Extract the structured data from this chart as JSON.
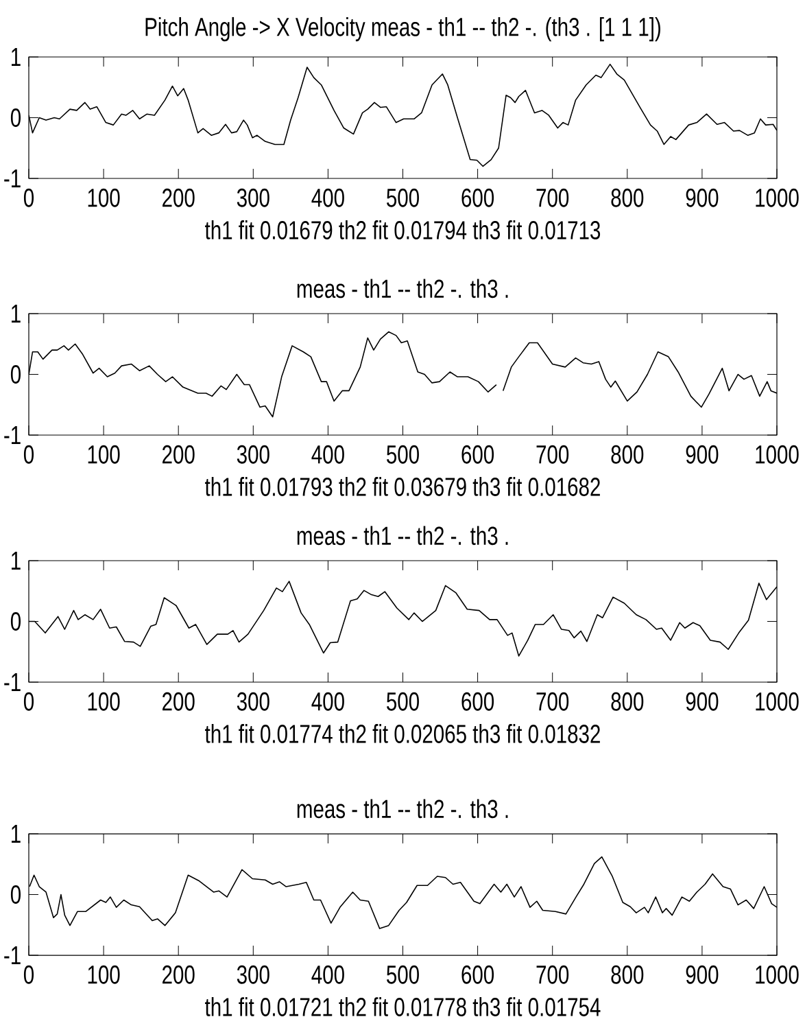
{
  "chart_data": [
    {
      "type": "line",
      "title": "Pitch Angle -> X Velocity meas -  th1 --  th2 -.  (th3 . [1 1 1])",
      "xlabel": "th1 fit 0.01679  th2 fit 0.01794 th3 fit 0.01713",
      "xlim": [
        0,
        1000
      ],
      "ylim": [
        -1,
        1
      ],
      "xticks": [
        0,
        100,
        200,
        300,
        400,
        500,
        600,
        700,
        800,
        900,
        1000
      ],
      "yticks": [
        -1,
        0,
        1
      ],
      "x": [
        0,
        5,
        14,
        23,
        34,
        41,
        55,
        64,
        75,
        82,
        91,
        103,
        113,
        124,
        130,
        139,
        148,
        158,
        168,
        182,
        192,
        199,
        207,
        213,
        226,
        233,
        244,
        254,
        263,
        271,
        278,
        287,
        292,
        299,
        305,
        316,
        329,
        341,
        350,
        360,
        372,
        381,
        391,
        408,
        421,
        434,
        446,
        453,
        462,
        470,
        478,
        491,
        501,
        515,
        525,
        539,
        553,
        560,
        573,
        590,
        599,
        607,
        618,
        628,
        638,
        644,
        650,
        655,
        664,
        676,
        686,
        695,
        707,
        714,
        721,
        731,
        745,
        758,
        765,
        777,
        786,
        796,
        817,
        831,
        840,
        849,
        858,
        865,
        882,
        893,
        906,
        920,
        930,
        942,
        950,
        961,
        970,
        978,
        985,
        995,
        1000
      ],
      "series": [
        {
          "color": "#000000",
          "values": [
            0.04,
            -0.25,
            0,
            -0.04,
            0,
            -0.02,
            0.14,
            0.12,
            0.25,
            0.14,
            0.18,
            -0.08,
            -0.12,
            0.06,
            0.04,
            0.12,
            -0.02,
            0.06,
            0.04,
            0.29,
            0.52,
            0.36,
            0.48,
            0.29,
            -0.25,
            -0.18,
            -0.29,
            -0.25,
            -0.11,
            -0.25,
            -0.23,
            -0.04,
            -0.12,
            -0.33,
            -0.29,
            -0.39,
            -0.44,
            -0.44,
            -0.04,
            0.33,
            0.83,
            0.66,
            0.54,
            0.12,
            -0.17,
            -0.27,
            0.08,
            0.14,
            0.25,
            0.17,
            0.18,
            -0.08,
            -0.02,
            -0.02,
            0.08,
            0.54,
            0.72,
            0.54,
            0,
            -0.69,
            -0.7,
            -0.8,
            -0.69,
            -0.5,
            0.37,
            0.33,
            0.25,
            0.35,
            0.45,
            0.08,
            0.12,
            0.04,
            -0.17,
            -0.08,
            -0.12,
            0.29,
            0.54,
            0.7,
            0.66,
            0.88,
            0.72,
            0.62,
            0.17,
            -0.12,
            -0.22,
            -0.44,
            -0.31,
            -0.36,
            -0.12,
            -0.08,
            0.06,
            -0.11,
            -0.08,
            -0.22,
            -0.21,
            -0.29,
            -0.25,
            -0.02,
            -0.12,
            -0.11,
            -0.21
          ]
        }
      ]
    },
    {
      "type": "line",
      "title": "meas -  th1 -- th2 -.  th3 .",
      "xlabel": "th1 fit 0.01793  th2 fit 0.03679 th3 fit 0.01682",
      "xlim": [
        0,
        1000
      ],
      "ylim": [
        -1,
        1
      ],
      "xticks": [
        0,
        100,
        200,
        300,
        400,
        500,
        600,
        700,
        800,
        900,
        1000
      ],
      "yticks": [
        -1,
        0,
        1
      ],
      "x": [
        0,
        5,
        12,
        19,
        31,
        38,
        47,
        53,
        62,
        72,
        86,
        94,
        105,
        115,
        124,
        137,
        148,
        161,
        172,
        183,
        192,
        206,
        226,
        237,
        245,
        257,
        264,
        278,
        288,
        295,
        309,
        316,
        326,
        338,
        352,
        367,
        377,
        391,
        398,
        408,
        419,
        428,
        443,
        453,
        461,
        470,
        481,
        491,
        498,
        506,
        520,
        529,
        539,
        549,
        563,
        573,
        587,
        601,
        614,
        625,
        630,
        634,
        645,
        655,
        669,
        680,
        700,
        717,
        731,
        741,
        752,
        762,
        771,
        778,
        784,
        800,
        813,
        827,
        841,
        855,
        868,
        885,
        899,
        909,
        927,
        936,
        948,
        956,
        966,
        977,
        987,
        992,
        1000
      ],
      "series": [
        {
          "color": "#000000",
          "values": [
            0,
            0.37,
            0.37,
            0.25,
            0.4,
            0.4,
            0.47,
            0.4,
            0.5,
            0.33,
            0.02,
            0.1,
            -0.04,
            0.02,
            0.14,
            0.17,
            0.06,
            0.14,
            0,
            -0.12,
            -0.04,
            -0.21,
            -0.31,
            -0.31,
            -0.36,
            -0.19,
            -0.25,
            0,
            -0.17,
            -0.17,
            -0.54,
            -0.52,
            -0.7,
            -0.04,
            0.47,
            0.37,
            0.29,
            -0.12,
            -0.12,
            -0.44,
            -0.27,
            -0.27,
            0.12,
            0.6,
            0.4,
            0.58,
            0.7,
            0.64,
            0.52,
            0.55,
            0.04,
            0,
            -0.14,
            -0.12,
            0.04,
            -0.04,
            -0.04,
            -0.12,
            -0.29,
            -0.17,
            null,
            -0.27,
            0.12,
            0.29,
            0.52,
            0.52,
            0.17,
            0.12,
            0.27,
            0.19,
            0.17,
            0.21,
            -0.08,
            -0.21,
            -0.11,
            -0.44,
            -0.29,
            0,
            0.37,
            0.29,
            0.04,
            -0.36,
            -0.54,
            -0.33,
            0.1,
            -0.27,
            0,
            -0.08,
            -0.02,
            -0.36,
            -0.12,
            -0.27,
            -0.31
          ]
        }
      ]
    },
    {
      "type": "line",
      "title": "meas -  th1 -- th2 -.  th3 .",
      "xlabel": "th1 fit 0.01774  th2 fit 0.02065 th3 fit 0.01832",
      "xlim": [
        0,
        1000
      ],
      "ylim": [
        -1,
        1
      ],
      "xticks": [
        0,
        100,
        200,
        300,
        400,
        500,
        600,
        700,
        800,
        900,
        1000
      ],
      "yticks": [
        -1,
        0,
        1
      ],
      "x": [
        0,
        8,
        22,
        39,
        48,
        60,
        66,
        75,
        86,
        96,
        108,
        117,
        128,
        140,
        149,
        163,
        170,
        181,
        197,
        214,
        223,
        238,
        252,
        266,
        273,
        281,
        293,
        314,
        331,
        339,
        348,
        364,
        375,
        394,
        403,
        413,
        430,
        439,
        448,
        458,
        467,
        476,
        492,
        508,
        515,
        526,
        544,
        557,
        571,
        586,
        602,
        616,
        626,
        640,
        646,
        655,
        667,
        677,
        688,
        701,
        712,
        722,
        729,
        738,
        746,
        760,
        767,
        781,
        796,
        812,
        825,
        839,
        846,
        858,
        870,
        877,
        888,
        897,
        911,
        924,
        935,
        949,
        962,
        976,
        986,
        1000
      ],
      "series": [
        {
          "color": "#000000",
          "values": [
            0,
            0,
            -0.19,
            0.08,
            -0.13,
            0.18,
            0.03,
            0.11,
            0.03,
            0.2,
            -0.11,
            -0.09,
            -0.33,
            -0.34,
            -0.41,
            -0.08,
            -0.05,
            0.39,
            0.26,
            -0.11,
            -0.05,
            -0.38,
            -0.21,
            -0.21,
            -0.15,
            -0.34,
            -0.21,
            0.18,
            0.55,
            0.49,
            0.66,
            0.14,
            -0.05,
            -0.52,
            -0.35,
            -0.34,
            0.34,
            0.37,
            0.51,
            0.44,
            0.41,
            0.49,
            0.22,
            0.03,
            0.14,
            0,
            0.18,
            0.59,
            0.47,
            0.2,
            0.18,
            0.03,
            0.03,
            -0.23,
            -0.19,
            -0.57,
            -0.31,
            -0.05,
            -0.05,
            0.11,
            -0.13,
            -0.15,
            -0.27,
            -0.16,
            -0.33,
            0.11,
            0.06,
            0.4,
            0.3,
            0.11,
            0.03,
            -0.13,
            -0.11,
            -0.31,
            -0.02,
            -0.11,
            -0.02,
            -0.07,
            -0.31,
            -0.34,
            -0.46,
            -0.19,
            0.02,
            0.63,
            0.36,
            0.57
          ]
        }
      ]
    },
    {
      "type": "line",
      "title": "meas -  th1 -- th2 -.  th3 .",
      "xlabel": "th1 fit 0.01721  th2 fit 0.01778 th3 fit 0.01754",
      "xlim": [
        0,
        1000
      ],
      "ylim": [
        -1,
        1
      ],
      "xticks": [
        0,
        100,
        200,
        300,
        400,
        500,
        600,
        700,
        800,
        900,
        1000
      ],
      "yticks": [
        -1,
        0,
        1
      ],
      "x": [
        1,
        7,
        14,
        23,
        33,
        38,
        43,
        48,
        55,
        65,
        76,
        96,
        103,
        109,
        117,
        127,
        137,
        148,
        165,
        172,
        182,
        196,
        213,
        227,
        247,
        254,
        265,
        285,
        299,
        316,
        326,
        335,
        344,
        361,
        371,
        381,
        390,
        404,
        416,
        433,
        443,
        454,
        469,
        481,
        495,
        505,
        519,
        533,
        546,
        557,
        567,
        577,
        595,
        603,
        622,
        631,
        639,
        649,
        658,
        670,
        679,
        687,
        704,
        718,
        732,
        742,
        756,
        766,
        780,
        794,
        804,
        812,
        823,
        828,
        838,
        847,
        852,
        860,
        873,
        883,
        893,
        904,
        914,
        928,
        938,
        948,
        959,
        969,
        983,
        993,
        1000
      ],
      "series": [
        {
          "color": "#000000",
          "values": [
            0.13,
            0.32,
            0.13,
            0.04,
            -0.38,
            -0.32,
            0,
            -0.34,
            -0.51,
            -0.28,
            -0.28,
            -0.09,
            -0.13,
            -0.04,
            -0.21,
            -0.09,
            -0.17,
            -0.2,
            -0.43,
            -0.4,
            -0.51,
            -0.3,
            0.32,
            0.23,
            0.04,
            0.06,
            -0.04,
            0.41,
            0.26,
            0.24,
            0.17,
            0.21,
            0.13,
            0.17,
            0.2,
            -0.09,
            -0.09,
            -0.47,
            -0.21,
            0.04,
            -0.09,
            -0.11,
            -0.56,
            -0.51,
            -0.26,
            -0.13,
            0.15,
            0.15,
            0.3,
            0.28,
            0.17,
            0.2,
            -0.11,
            -0.15,
            0.17,
            0.04,
            0.17,
            -0.04,
            0.13,
            -0.21,
            -0.11,
            -0.26,
            -0.28,
            -0.32,
            -0.03,
            0.17,
            0.51,
            0.62,
            0.3,
            -0.13,
            -0.2,
            -0.3,
            -0.21,
            -0.3,
            -0.04,
            -0.3,
            -0.23,
            -0.34,
            -0.04,
            -0.11,
            0.04,
            0.17,
            0.34,
            0.13,
            0.09,
            -0.17,
            -0.09,
            -0.23,
            0.13,
            -0.15,
            -0.21
          ]
        }
      ]
    }
  ]
}
